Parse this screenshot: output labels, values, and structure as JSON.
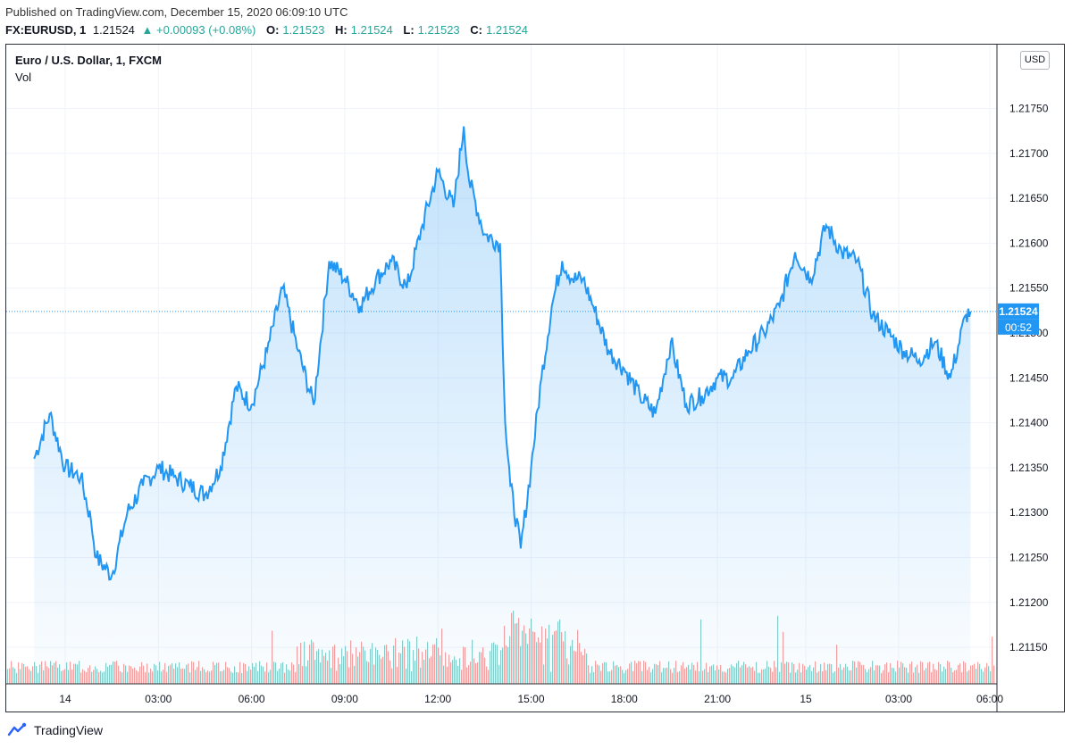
{
  "header": {
    "published": "Published on TradingView.com, December 15, 2020 06:09:10 UTC",
    "symbol": "FX:EURUSD, 1",
    "last": "1.21524",
    "change": "+0.00093 (+0.08%)",
    "o_label": "O:",
    "o_value": "1.21523",
    "h_label": "H:",
    "h_value": "1.21524",
    "l_label": "L:",
    "l_value": "1.21523",
    "c_label": "C:",
    "c_value": "1.21524"
  },
  "legend": {
    "title": "Euro / U.S. Dollar, 1, FXCM",
    "vol": "Vol"
  },
  "currency": "USD",
  "footer": {
    "brand": "TradingView"
  },
  "colors": {
    "line": "#2196f3",
    "up": "#26a69a",
    "down": "#ef5350",
    "grid": "#f0f3fa",
    "price_tag": "#2196f3"
  },
  "chart_data": {
    "type": "area",
    "ylim": [
      1.211,
      1.218
    ],
    "y_ticks": [
      "1.21750",
      "1.21700",
      "1.21650",
      "1.21600",
      "1.21550",
      "1.21500",
      "1.21450",
      "1.21400",
      "1.21350",
      "1.21300",
      "1.21250",
      "1.21200",
      "1.21150"
    ],
    "x_ticks": [
      "14",
      "03:00",
      "06:00",
      "09:00",
      "12:00",
      "15:00",
      "18:00",
      "21:00",
      "15",
      "03:00",
      "06:00"
    ],
    "last_price": "1.21524",
    "countdown": "00:52",
    "series": [
      {
        "x": [
          "Dec 14 00:00",
          "Dec 14 00:30",
          "Dec 14 01:00",
          "Dec 14 01:30",
          "Dec 14 01:50",
          "Dec 14 02:00",
          "Dec 14 02:30",
          "Dec 14 03:00",
          "Dec 14 03:30",
          "Dec 14 04:00",
          "Dec 14 04:30",
          "Dec 14 05:00",
          "Dec 14 05:30",
          "Dec 14 06:00",
          "Dec 14 06:30",
          "Dec 14 07:00",
          "Dec 14 07:30",
          "Dec 14 08:00",
          "Dec 14 08:30",
          "Dec 14 09:00",
          "Dec 14 09:30",
          "Dec 14 10:00",
          "Dec 14 10:30",
          "Dec 14 11:00",
          "Dec 14 11:30",
          "Dec 14 12:00",
          "Dec 14 12:30",
          "Dec 14 13:00",
          "Dec 14 13:30",
          "Dec 14 13:50",
          "Dec 14 14:00",
          "Dec 14 14:30",
          "Dec 14 15:00",
          "Dec 14 15:10",
          "Dec 14 15:20",
          "Dec 14 15:40",
          "Dec 14 16:00",
          "Dec 14 16:20",
          "Dec 14 16:40",
          "Dec 14 17:00",
          "Dec 14 17:20",
          "Dec 14 17:40",
          "Dec 14 18:00",
          "Dec 14 18:30",
          "Dec 14 19:00",
          "Dec 14 19:30",
          "Dec 14 20:00",
          "Dec 14 20:30",
          "Dec 14 21:00",
          "Dec 14 21:30",
          "Dec 14 22:00",
          "Dec 14 22:30",
          "Dec 14 23:00",
          "Dec 14 23:30",
          "Dec 15 00:00",
          "Dec 15 00:30",
          "Dec 15 01:00",
          "Dec 15 01:30",
          "Dec 15 02:00",
          "Dec 15 02:30",
          "Dec 15 03:00",
          "Dec 15 03:30",
          "Dec 15 04:00",
          "Dec 15 04:30",
          "Dec 15 05:00",
          "Dec 15 05:30",
          "Dec 15 06:00",
          "Dec 15 06:09"
        ],
        "values": [
          1.2136,
          1.2141,
          1.2135,
          1.2134,
          1.2129,
          1.2125,
          1.2123,
          1.213,
          1.2133,
          1.2135,
          1.2134,
          1.2133,
          1.2132,
          1.2135,
          1.2144,
          1.2142,
          1.2148,
          1.2155,
          1.2148,
          1.2142,
          1.2158,
          1.2156,
          1.2153,
          1.2156,
          1.2158,
          1.2155,
          1.2162,
          1.2168,
          1.2164,
          1.2173,
          1.2167,
          1.2161,
          1.216,
          1.214,
          1.2133,
          1.2126,
          1.2135,
          1.2145,
          1.2153,
          1.2158,
          1.2156,
          1.2156,
          1.2153,
          1.2148,
          1.2146,
          1.2143,
          1.2141,
          1.2149,
          1.2142,
          1.2143,
          1.2145,
          1.2145,
          1.2148,
          1.215,
          1.2153,
          1.2159,
          1.2156,
          1.2162,
          1.2159,
          1.2158,
          1.2152,
          1.215,
          1.2148,
          1.2147,
          1.2149,
          1.2145,
          1.2152,
          1.21524
        ]
      }
    ]
  }
}
